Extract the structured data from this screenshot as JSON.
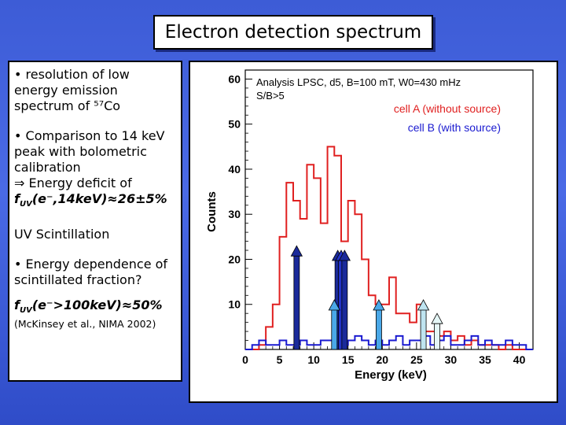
{
  "slide_title": "Electron detection spectrum",
  "left_panel": {
    "bullet_1": "• resolution of low energy emission spectrum of ⁵⁷Co",
    "bullet_2": "• Comparison to 14 keV peak with bolometric calibration",
    "arrow_line": "⇒ Energy deficit of",
    "energy_deficit": "f",
    "energy_deficit_sub": "UV",
    "energy_deficit_expr": "(e⁻,14keV)≈26±5%",
    "section_heading": "UV Scintillation",
    "bullet_3": "• Energy dependence of scintillated fraction?",
    "fraction_f": "f",
    "fraction_sub": "UV",
    "fraction_expr": "(e⁻>100keV)≈50%",
    "reference": "(McKinsey et al., NIMA 2002)"
  },
  "chart_data": {
    "type": "histogram",
    "title": "",
    "annotation_line1": "Analysis LPSC, d5, B=100 mT, W0=430 mHz",
    "annotation_line2": "S/B>5",
    "xlabel": "Energy (keV)",
    "ylabel": "Counts",
    "xlim": [
      0,
      42
    ],
    "ylim": [
      0,
      62
    ],
    "x_ticks": [
      0,
      5,
      10,
      15,
      20,
      25,
      30,
      35,
      40
    ],
    "y_ticks": [
      10,
      20,
      30,
      40,
      50,
      60
    ],
    "bin_width": 1,
    "series": [
      {
        "name": "cell A (without source)",
        "color": "#e02020",
        "values": [
          0,
          0,
          1,
          5,
          10,
          25,
          37,
          33,
          29,
          41,
          38,
          28,
          45,
          43,
          24,
          33,
          30,
          20,
          12,
          10,
          10,
          16,
          8,
          8,
          6,
          10,
          4,
          4,
          3,
          4,
          2,
          3,
          1,
          2,
          1,
          1,
          1,
          0,
          1,
          0,
          0,
          0
        ]
      },
      {
        "name": "cell B (with source)",
        "color": "#1a1ad0",
        "values": [
          0,
          1,
          2,
          1,
          1,
          2,
          1,
          1,
          2,
          1,
          1,
          2,
          2,
          3,
          1,
          2,
          3,
          2,
          1,
          2,
          1,
          2,
          3,
          1,
          2,
          2,
          3,
          1,
          2,
          3,
          1,
          1,
          2,
          3,
          1,
          2,
          1,
          1,
          2,
          1,
          1,
          0
        ]
      }
    ],
    "arrows": [
      {
        "energy": 7.5,
        "height": 23,
        "color": "#1a2a9a"
      },
      {
        "energy": 13.5,
        "height": 22,
        "color": "#1a2a9a"
      },
      {
        "energy": 14.0,
        "height": 22,
        "color": "#2233c8"
      },
      {
        "energy": 14.5,
        "height": 22,
        "color": "#1a2a9a"
      },
      {
        "energy": 13.0,
        "height": 11,
        "color": "#4aa8e8"
      },
      {
        "energy": 19.5,
        "height": 11,
        "color": "#4aa8e8"
      },
      {
        "energy": 26.0,
        "height": 11,
        "color": "#bfe4f0"
      },
      {
        "energy": 28.0,
        "height": 8,
        "color": "#e4f6f6"
      }
    ]
  }
}
